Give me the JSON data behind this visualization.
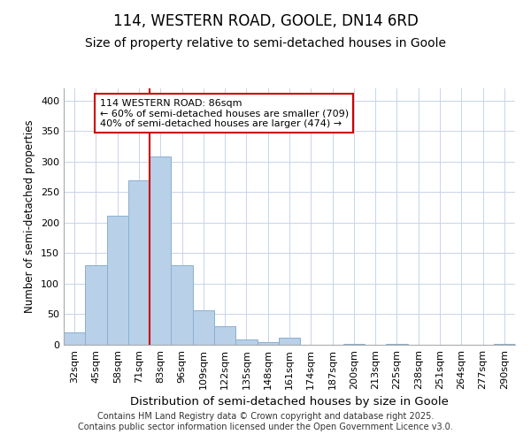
{
  "title": "114, WESTERN ROAD, GOOLE, DN14 6RD",
  "subtitle": "Size of property relative to semi-detached houses in Goole",
  "xlabel": "Distribution of semi-detached houses by size in Goole",
  "ylabel": "Number of semi-detached properties",
  "bins": [
    "32sqm",
    "45sqm",
    "58sqm",
    "71sqm",
    "83sqm",
    "96sqm",
    "109sqm",
    "122sqm",
    "135sqm",
    "148sqm",
    "161sqm",
    "174sqm",
    "187sqm",
    "200sqm",
    "213sqm",
    "225sqm",
    "238sqm",
    "251sqm",
    "264sqm",
    "277sqm",
    "290sqm"
  ],
  "values": [
    20,
    131,
    211,
    270,
    308,
    131,
    57,
    30,
    9,
    5,
    12,
    0,
    0,
    1,
    0,
    2,
    0,
    0,
    0,
    0,
    1
  ],
  "bar_color": "#b8d0e8",
  "bar_edge_color": "#8ab0d0",
  "grid_color": "#c8d4e8",
  "background_color": "#ffffff",
  "vline_color": "#cc0000",
  "vline_bin_index": 4,
  "annotation_text": "114 WESTERN ROAD: 86sqm\n← 60% of semi-detached houses are smaller (709)\n40% of semi-detached houses are larger (474) →",
  "annotation_box_color": "#cc0000",
  "ylim": [
    0,
    420
  ],
  "yticks": [
    0,
    50,
    100,
    150,
    200,
    250,
    300,
    350,
    400
  ],
  "footer": "Contains HM Land Registry data © Crown copyright and database right 2025.\nContains public sector information licensed under the Open Government Licence v3.0.",
  "title_fontsize": 12,
  "subtitle_fontsize": 10,
  "xlabel_fontsize": 9.5,
  "ylabel_fontsize": 8.5,
  "tick_fontsize": 8,
  "annotation_fontsize": 8,
  "footer_fontsize": 7
}
